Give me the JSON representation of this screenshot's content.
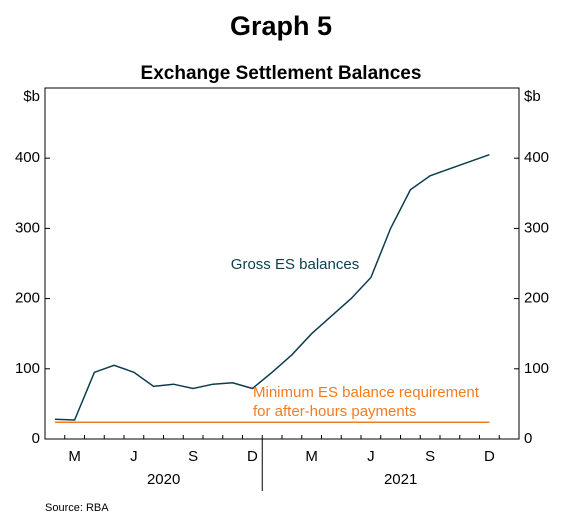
{
  "chart_data": {
    "type": "line",
    "title": "Graph 5",
    "subtitle": "Exchange Settlement Balances",
    "y_unit": "$b",
    "source": "Source:  RBA",
    "categories": [
      null,
      "M",
      null,
      null,
      "J",
      null,
      null,
      "S",
      null,
      null,
      "D",
      null,
      null,
      "M",
      null,
      null,
      "J",
      null,
      null,
      "S",
      null,
      null,
      "D",
      null
    ],
    "years": [
      "2020",
      "2021"
    ],
    "series": [
      {
        "color": "#0b3d4c",
        "values": [
          28,
          27,
          95,
          105,
          95,
          75,
          78,
          72,
          78,
          80,
          72,
          95,
          120,
          150,
          175,
          200,
          230,
          300,
          355,
          375,
          385,
          395,
          405,
          null
        ]
      },
      {
        "color": "#f47b20",
        "values": [
          24,
          24,
          24,
          24,
          24,
          24,
          24,
          24,
          24,
          24,
          24,
          24,
          24,
          24,
          24,
          24,
          24,
          24,
          24,
          24,
          24,
          24,
          24,
          null
        ]
      }
    ],
    "annotations": [
      {
        "lines": [
          "Gross ES balances"
        ],
        "color": "#0b3d4c"
      },
      {
        "lines": [
          "Minimum ES balance requirement",
          "for after-hours payments"
        ],
        "color": "#f47b20"
      }
    ],
    "ylim": [
      0,
      500
    ],
    "yticks": [
      0,
      100,
      200,
      300,
      400
    ],
    "grid": false
  }
}
